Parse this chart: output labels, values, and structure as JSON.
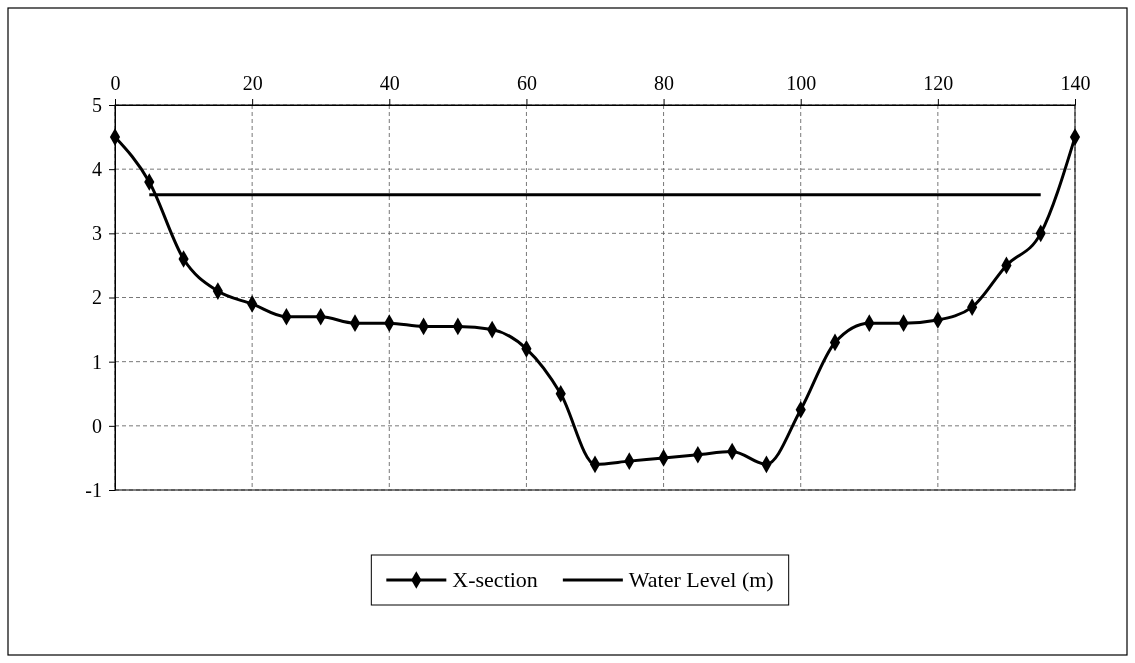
{
  "chart_data": {
    "type": "line",
    "xlim": [
      0,
      140
    ],
    "xticks": [
      0,
      20,
      40,
      60,
      80,
      100,
      120,
      140
    ],
    "ylim": [
      -1,
      5
    ],
    "yticks": [
      -1,
      0,
      1,
      2,
      3,
      4,
      5
    ],
    "grid": true,
    "legend": "bottom",
    "line_style": "solid",
    "series": [
      {
        "name": "X-section",
        "color": "#000000",
        "marker": "diamond",
        "x": [
          0,
          5,
          10,
          15,
          20,
          25,
          30,
          35,
          40,
          45,
          50,
          55,
          60,
          65,
          70,
          75,
          80,
          85,
          90,
          95,
          100,
          105,
          110,
          115,
          120,
          125,
          130,
          135,
          140
        ],
        "values": [
          4.5,
          3.8,
          2.6,
          2.1,
          1.9,
          1.7,
          1.7,
          1.6,
          1.6,
          1.55,
          1.55,
          1.5,
          1.2,
          0.5,
          -0.6,
          -0.55,
          -0.5,
          -0.45,
          -0.4,
          -0.6,
          0.25,
          1.3,
          1.6,
          1.6,
          1.65,
          1.85,
          2.5,
          3.0,
          4.5
        ]
      },
      {
        "name": "Water Level (m)",
        "color": "#000000",
        "marker": "none",
        "x": [
          5,
          135
        ],
        "values": [
          3.6,
          3.6
        ]
      }
    ]
  }
}
